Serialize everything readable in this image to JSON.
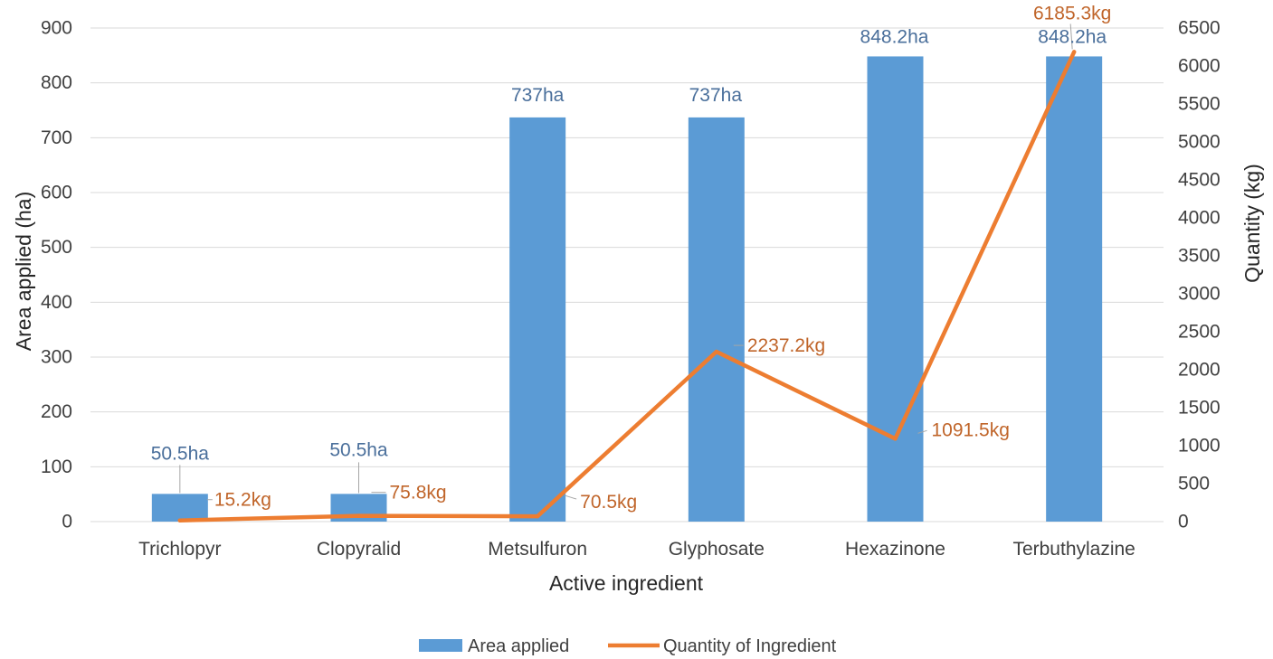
{
  "chart_data": {
    "type": "bar",
    "categories": [
      "Trichlopyr",
      "Clopyralid",
      "Metsulfuron",
      "Glyphosate",
      "Hexazinone",
      "Terbuthylazine"
    ],
    "series": [
      {
        "name": "Area applied",
        "type": "bar",
        "axis": "left",
        "values": [
          50.5,
          50.5,
          737,
          737,
          848.2,
          848.2
        ],
        "labels": [
          "50.5ha",
          "50.5ha",
          "737ha",
          "737ha",
          "848.2ha",
          "848.2ha"
        ],
        "color": "#5B9BD5",
        "label_color": "#4A6F9B"
      },
      {
        "name": "Quantity of Ingredient",
        "type": "line",
        "axis": "right",
        "values": [
          15.2,
          75.8,
          70.5,
          2237.2,
          1091.5,
          6185.3
        ],
        "labels": [
          "15.2kg",
          "75.8kg",
          "70.5kg",
          "2237.2kg",
          "1091.5kg",
          "6185.3kg"
        ],
        "color": "#ED7D31",
        "label_color": "#C0652A"
      }
    ],
    "xlabel": "Active ingredient",
    "ylabel": "Area applied (ha)",
    "y2label": "Quantity (kg)",
    "ylim": [
      0,
      900
    ],
    "y2lim": [
      0,
      6500
    ],
    "yticks": [
      0,
      100,
      200,
      300,
      400,
      500,
      600,
      700,
      800,
      900
    ],
    "y2ticks": [
      0,
      500,
      1000,
      1500,
      2000,
      2500,
      3000,
      3500,
      4000,
      4500,
      5000,
      5500,
      6000,
      6500
    ],
    "grid": true,
    "legend": "bottom"
  }
}
